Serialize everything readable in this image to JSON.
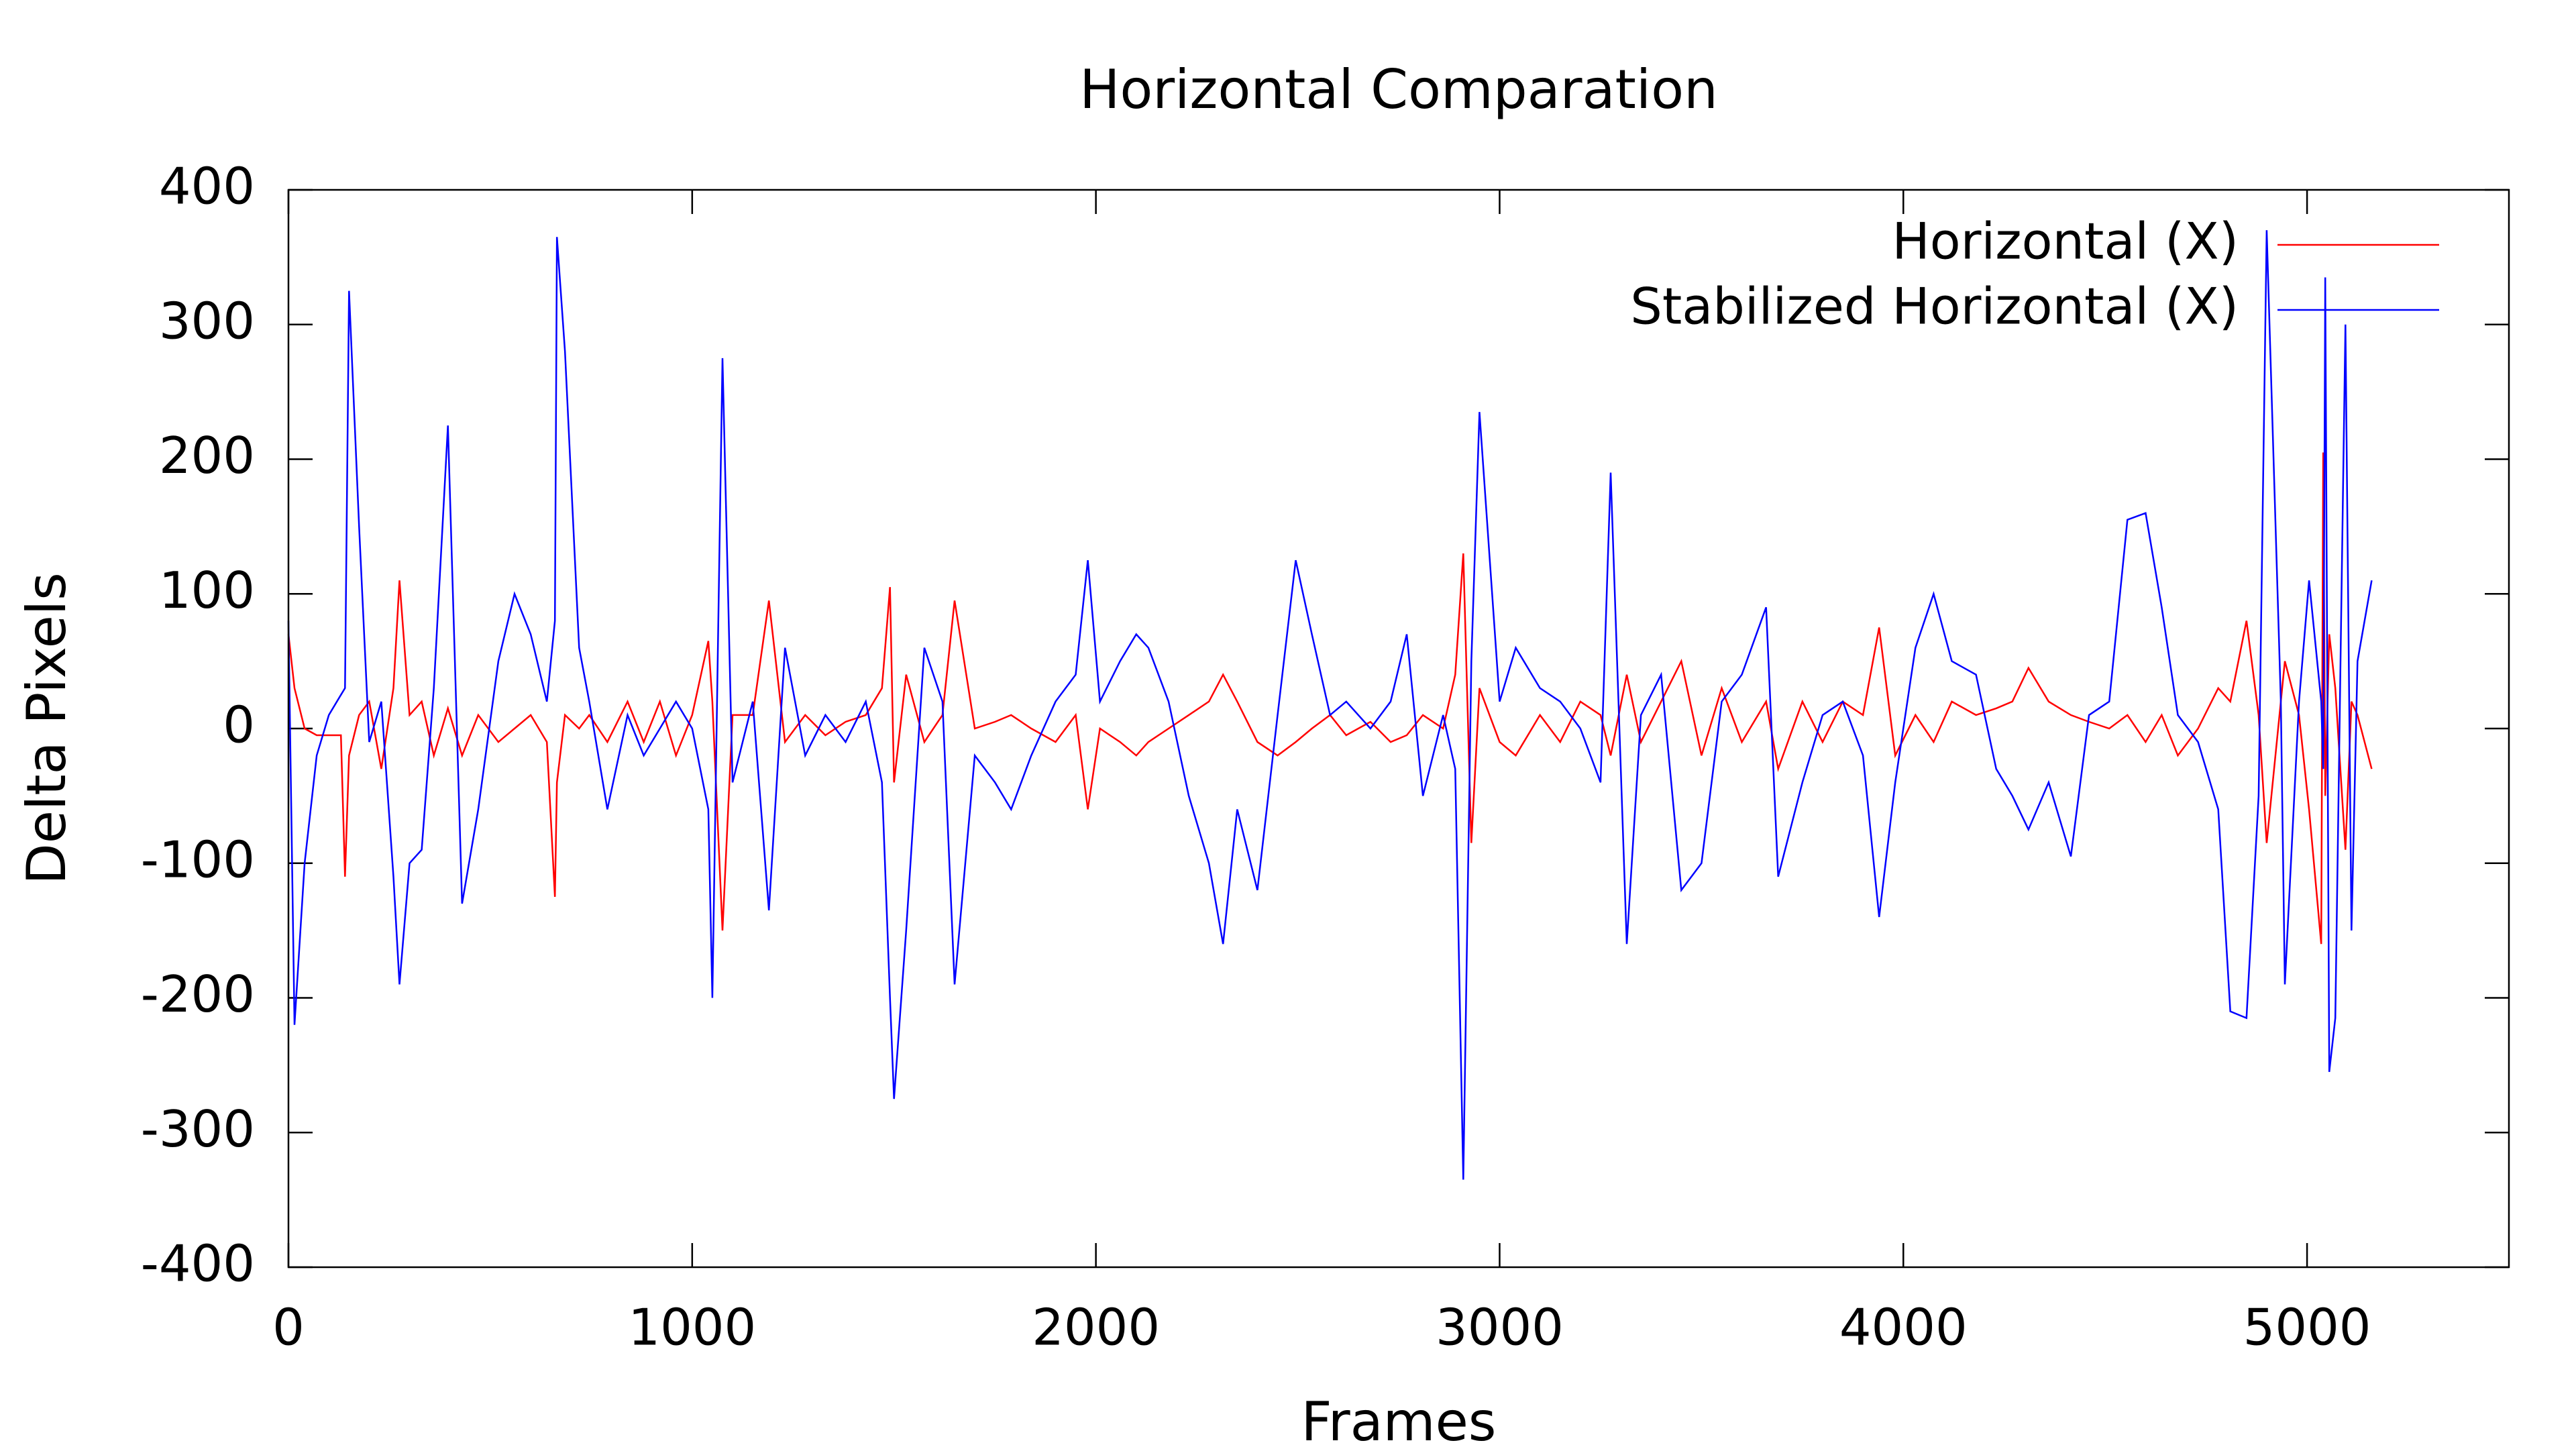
{
  "chart_data": {
    "type": "line",
    "title": "Horizontal Comparation",
    "x_label": "Frames",
    "y_label": "Delta Pixels",
    "xlim": [
      0,
      5500
    ],
    "xticks": [
      0,
      1000,
      2000,
      3000,
      4000,
      5000
    ],
    "ylim": [
      -400,
      400
    ],
    "yticks": [
      -400,
      -300,
      -200,
      -100,
      0,
      100,
      200,
      300,
      400
    ],
    "grid": false,
    "legend": "upper right",
    "x": [
      0,
      15,
      40,
      70,
      100,
      130,
      140,
      150,
      175,
      200,
      230,
      260,
      275,
      300,
      330,
      360,
      395,
      430,
      470,
      520,
      560,
      600,
      640,
      660,
      665,
      685,
      720,
      745,
      790,
      840,
      880,
      920,
      960,
      1000,
      1040,
      1050,
      1075,
      1100,
      1150,
      1190,
      1230,
      1280,
      1330,
      1380,
      1430,
      1470,
      1490,
      1500,
      1530,
      1575,
      1620,
      1650,
      1700,
      1750,
      1790,
      1840,
      1900,
      1950,
      1980,
      2010,
      2060,
      2100,
      2130,
      2180,
      2230,
      2280,
      2315,
      2350,
      2400,
      2450,
      2495,
      2535,
      2580,
      2620,
      2680,
      2730,
      2770,
      2810,
      2860,
      2890,
      2910,
      2930,
      2950,
      3000,
      3040,
      3100,
      3150,
      3200,
      3250,
      3275,
      3315,
      3350,
      3400,
      3450,
      3500,
      3550,
      3600,
      3660,
      3690,
      3750,
      3800,
      3850,
      3900,
      3940,
      3980,
      4030,
      4075,
      4120,
      4180,
      4230,
      4270,
      4310,
      4360,
      4415,
      4460,
      4510,
      4555,
      4600,
      4640,
      4680,
      4730,
      4780,
      4810,
      4850,
      4880,
      4900,
      4935,
      4945,
      4980,
      5005,
      5035,
      5040,
      5045,
      5055,
      5070,
      5095,
      5110,
      5125,
      5160
    ],
    "series": [
      {
        "name": "Horizontal (X)",
        "color": "#ff0000",
        "values": [
          70,
          30,
          0,
          -5,
          -5,
          -5,
          -110,
          -20,
          10,
          20,
          -30,
          30,
          110,
          10,
          20,
          -20,
          15,
          -20,
          10,
          -10,
          0,
          10,
          -10,
          -125,
          -40,
          10,
          0,
          10,
          -10,
          20,
          -10,
          20,
          -20,
          10,
          65,
          20,
          -150,
          10,
          10,
          95,
          -10,
          10,
          -5,
          5,
          10,
          30,
          105,
          -40,
          40,
          -10,
          10,
          95,
          0,
          5,
          10,
          0,
          -10,
          10,
          -60,
          0,
          -10,
          -20,
          -10,
          0,
          10,
          20,
          40,
          20,
          -10,
          -20,
          -10,
          0,
          10,
          -5,
          5,
          -10,
          -5,
          10,
          0,
          40,
          130,
          -85,
          30,
          -10,
          -20,
          10,
          -10,
          20,
          10,
          -20,
          40,
          -10,
          20,
          50,
          -20,
          30,
          -10,
          20,
          -30,
          20,
          -10,
          20,
          10,
          75,
          -20,
          10,
          -10,
          20,
          10,
          15,
          20,
          45,
          20,
          10,
          5,
          0,
          10,
          -10,
          10,
          -20,
          0,
          30,
          20,
          80,
          10,
          -85,
          20,
          50,
          10,
          -60,
          -160,
          205,
          -50,
          70,
          30,
          -90,
          20,
          10,
          -30
        ]
      },
      {
        "name": "Stabilized Horizontal (X)",
        "color": "#0000ff",
        "values": [
          80,
          -220,
          -100,
          -20,
          10,
          25,
          30,
          325,
          150,
          -10,
          20,
          -110,
          -190,
          -100,
          -90,
          30,
          225,
          -130,
          -60,
          50,
          100,
          70,
          20,
          80,
          365,
          280,
          60,
          20,
          -60,
          10,
          -20,
          0,
          20,
          0,
          -60,
          -200,
          275,
          -40,
          20,
          -135,
          60,
          -20,
          10,
          -10,
          20,
          -40,
          -200,
          -275,
          -150,
          60,
          20,
          -190,
          -20,
          -40,
          -60,
          -20,
          20,
          40,
          125,
          20,
          50,
          70,
          60,
          20,
          -50,
          -100,
          -160,
          -60,
          -120,
          10,
          125,
          70,
          10,
          20,
          0,
          20,
          70,
          -50,
          10,
          -30,
          -335,
          50,
          235,
          20,
          60,
          30,
          20,
          0,
          -40,
          190,
          -160,
          10,
          40,
          -120,
          -100,
          20,
          40,
          90,
          -110,
          -40,
          10,
          20,
          -20,
          -140,
          -40,
          60,
          100,
          50,
          40,
          -30,
          -50,
          -75,
          -40,
          -95,
          10,
          20,
          155,
          160,
          90,
          10,
          -10,
          -60,
          -210,
          -215,
          -50,
          370,
          20,
          -190,
          20,
          110,
          20,
          -30,
          335,
          -255,
          -215,
          300,
          -150,
          50,
          110
        ]
      }
    ]
  }
}
